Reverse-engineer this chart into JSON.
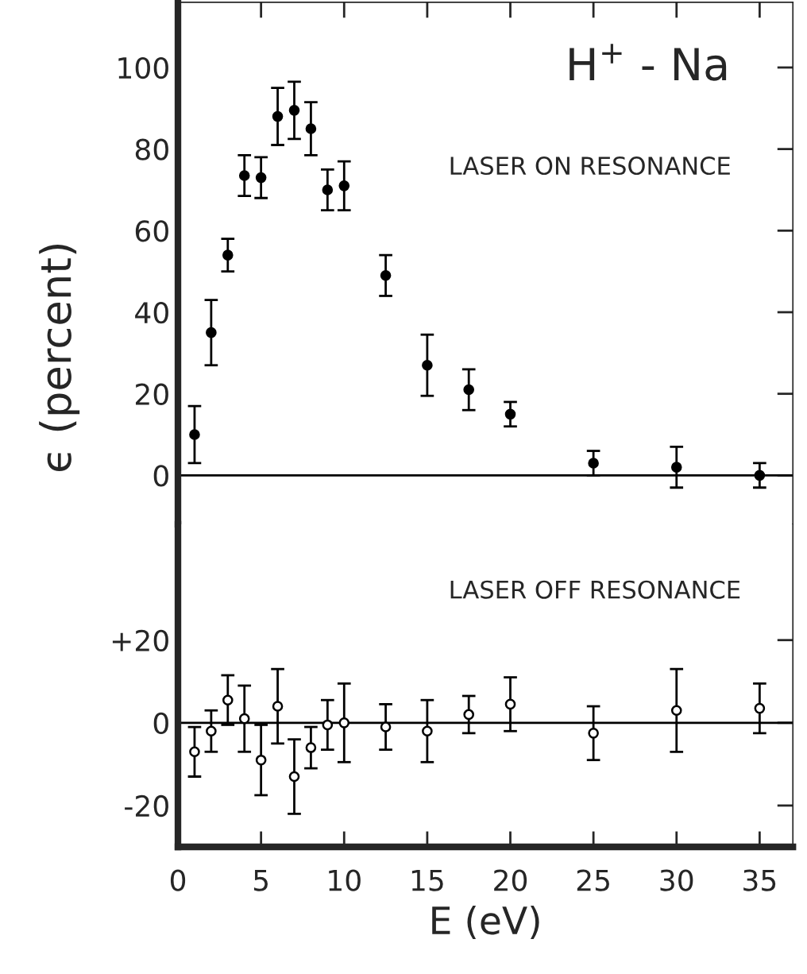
{
  "chart_data": [
    {
      "type": "scatter",
      "ylabel": "ϵ (percent)",
      "annotations": [
        "H$^{+}$ - Na",
        "LASER ON RESONANCE"
      ],
      "xlim": [
        0,
        37
      ],
      "xticks": [
        0,
        5,
        10,
        15,
        20,
        25,
        30,
        35
      ],
      "ylim": [
        -12,
        116
      ],
      "yticks": [
        0,
        20,
        40,
        60,
        80,
        100
      ],
      "tick_labels": "y",
      "marker": "circle",
      "grid": false,
      "legend": false,
      "ref_lines": [
        {
          "axis": "y",
          "value": 0,
          "color": "#000000"
        }
      ],
      "series": [
        {
          "color": "#000000",
          "x": [
            1,
            2,
            3,
            4,
            5,
            6,
            7,
            8,
            9,
            10,
            12.5,
            15,
            17.5,
            20,
            25,
            30,
            35
          ],
          "values": [
            10,
            35,
            54,
            73.5,
            73,
            88,
            89.5,
            85,
            70,
            71,
            49,
            27,
            21,
            15,
            3,
            2,
            0
          ],
          "errors": [
            7,
            8,
            4,
            5,
            5,
            7,
            7,
            6.5,
            5,
            6,
            5,
            7.5,
            5,
            3,
            3,
            5,
            3
          ]
        }
      ]
    },
    {
      "type": "scatter",
      "xlabel": "E (eV)",
      "annotations": [
        "LASER OFF RESONANCE"
      ],
      "xlim": [
        0,
        37
      ],
      "xticks": [
        0,
        5,
        10,
        15,
        20,
        25,
        30,
        35
      ],
      "ylim": [
        -30,
        48
      ],
      "yticks": [
        {
          "value": 20,
          "label": "+20"
        },
        0,
        {
          "value": -20,
          "label": "-20"
        }
      ],
      "marker": "circle",
      "grid": false,
      "legend": false,
      "ref_lines": [
        {
          "axis": "y",
          "value": 0,
          "color": "#000000"
        }
      ],
      "series": [
        {
          "color": "#000000",
          "x": [
            1,
            2,
            3,
            4,
            5,
            6,
            7,
            8,
            9,
            10,
            12.5,
            15,
            17.5,
            20,
            25,
            30,
            35
          ],
          "values": [
            -7,
            -2,
            5.5,
            1,
            -9,
            4,
            -13,
            -6,
            -0.5,
            0,
            -1,
            -2,
            2,
            4.5,
            -2.5,
            3,
            3.5
          ],
          "errors": [
            6,
            5,
            6,
            8,
            8.5,
            9,
            9,
            5,
            6,
            9.5,
            5.5,
            7.5,
            4.5,
            6.5,
            6.5,
            10,
            6
          ]
        }
      ]
    }
  ]
}
